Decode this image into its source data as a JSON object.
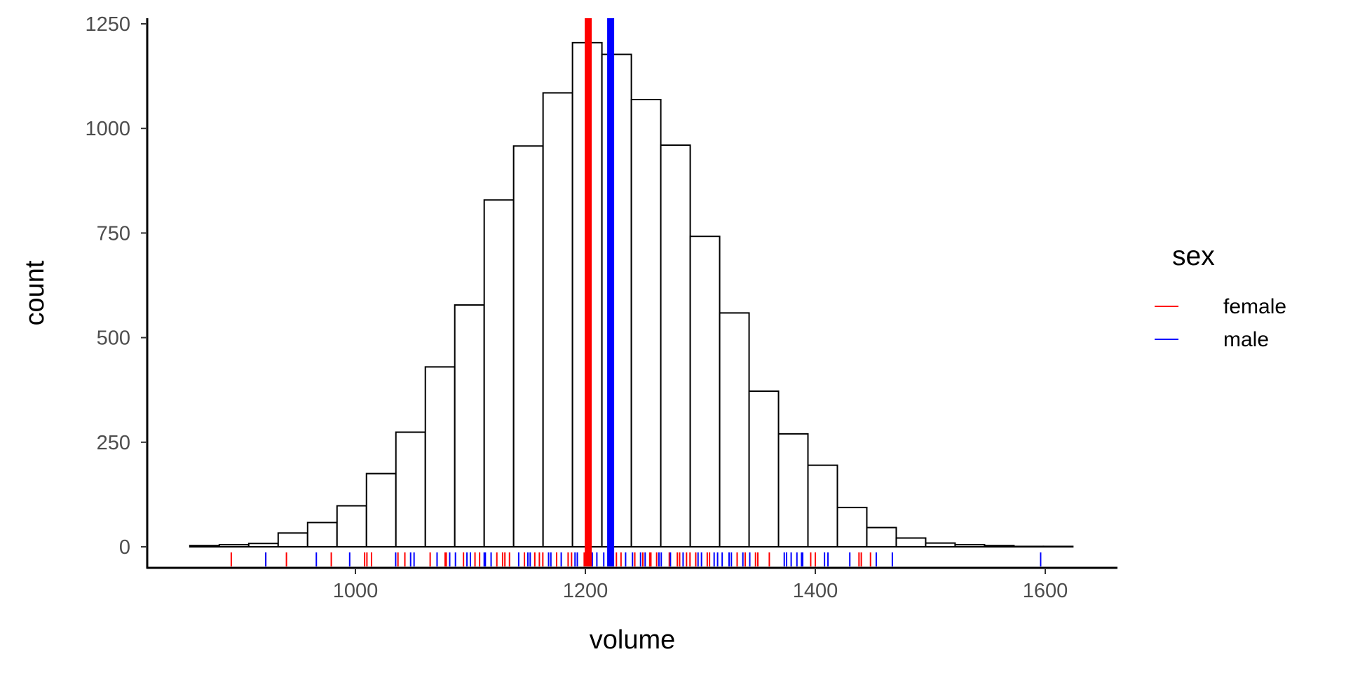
{
  "chart_data": {
    "type": "bar",
    "subtype": "histogram",
    "xlabel": "volume",
    "ylabel": "count",
    "xlim": [
      830,
      1660
    ],
    "ylim": [
      -60,
      1265
    ],
    "x_ticks": [
      1000,
      1200,
      1400,
      1600
    ],
    "x_tick_labels": [
      "1000",
      "1200",
      "1400",
      "1600"
    ],
    "y_ticks": [
      0,
      250,
      500,
      750,
      1000,
      1250
    ],
    "y_tick_labels": [
      "0",
      "250",
      "500",
      "750",
      "1000",
      "1250"
    ],
    "bins": {
      "start": 856,
      "width": 25.6
    },
    "values": [
      3,
      5,
      8,
      33,
      58,
      98,
      175,
      274,
      430,
      578,
      829,
      958,
      1085,
      1205,
      1177,
      1069,
      960,
      742,
      559,
      372,
      270,
      195,
      94,
      46,
      21,
      9,
      5,
      3,
      1,
      1
    ],
    "mean_lines": [
      {
        "group": "female",
        "value": 1202.5
      },
      {
        "group": "male",
        "value": 1222
      }
    ],
    "rug": {
      "female": [
        892,
        922,
        940,
        979,
        1008,
        1010,
        1014,
        1037,
        1043,
        1065,
        1078,
        1079,
        1094,
        1104,
        1108,
        1123,
        1128,
        1130,
        1134,
        1147,
        1156,
        1160,
        1163,
        1175,
        1185,
        1188,
        1199,
        1203,
        1227,
        1231,
        1243,
        1250,
        1256,
        1257,
        1262,
        1273,
        1280,
        1282,
        1288,
        1291,
        1296,
        1306,
        1308,
        1332,
        1339,
        1348,
        1350,
        1360,
        1396,
        1400,
        1438,
        1440,
        1448
      ],
      "male": [
        922,
        966,
        995,
        1035,
        1048,
        1051,
        1071,
        1082,
        1087,
        1097,
        1100,
        1112,
        1113,
        1118,
        1142,
        1150,
        1152,
        1168,
        1170,
        1179,
        1191,
        1193,
        1206,
        1210,
        1216,
        1220,
        1235,
        1241,
        1248,
        1252,
        1264,
        1266,
        1274,
        1285,
        1298,
        1301,
        1312,
        1315,
        1319,
        1325,
        1327,
        1337,
        1343,
        1373,
        1375,
        1379,
        1384,
        1388,
        1389,
        1408,
        1411,
        1430,
        1453,
        1467,
        1596
      ]
    },
    "legend": {
      "title": "sex",
      "position": "right",
      "entries": [
        {
          "label": "female",
          "color": "#FF0000"
        },
        {
          "label": "male",
          "color": "#0000FF"
        }
      ]
    },
    "grid": false
  }
}
